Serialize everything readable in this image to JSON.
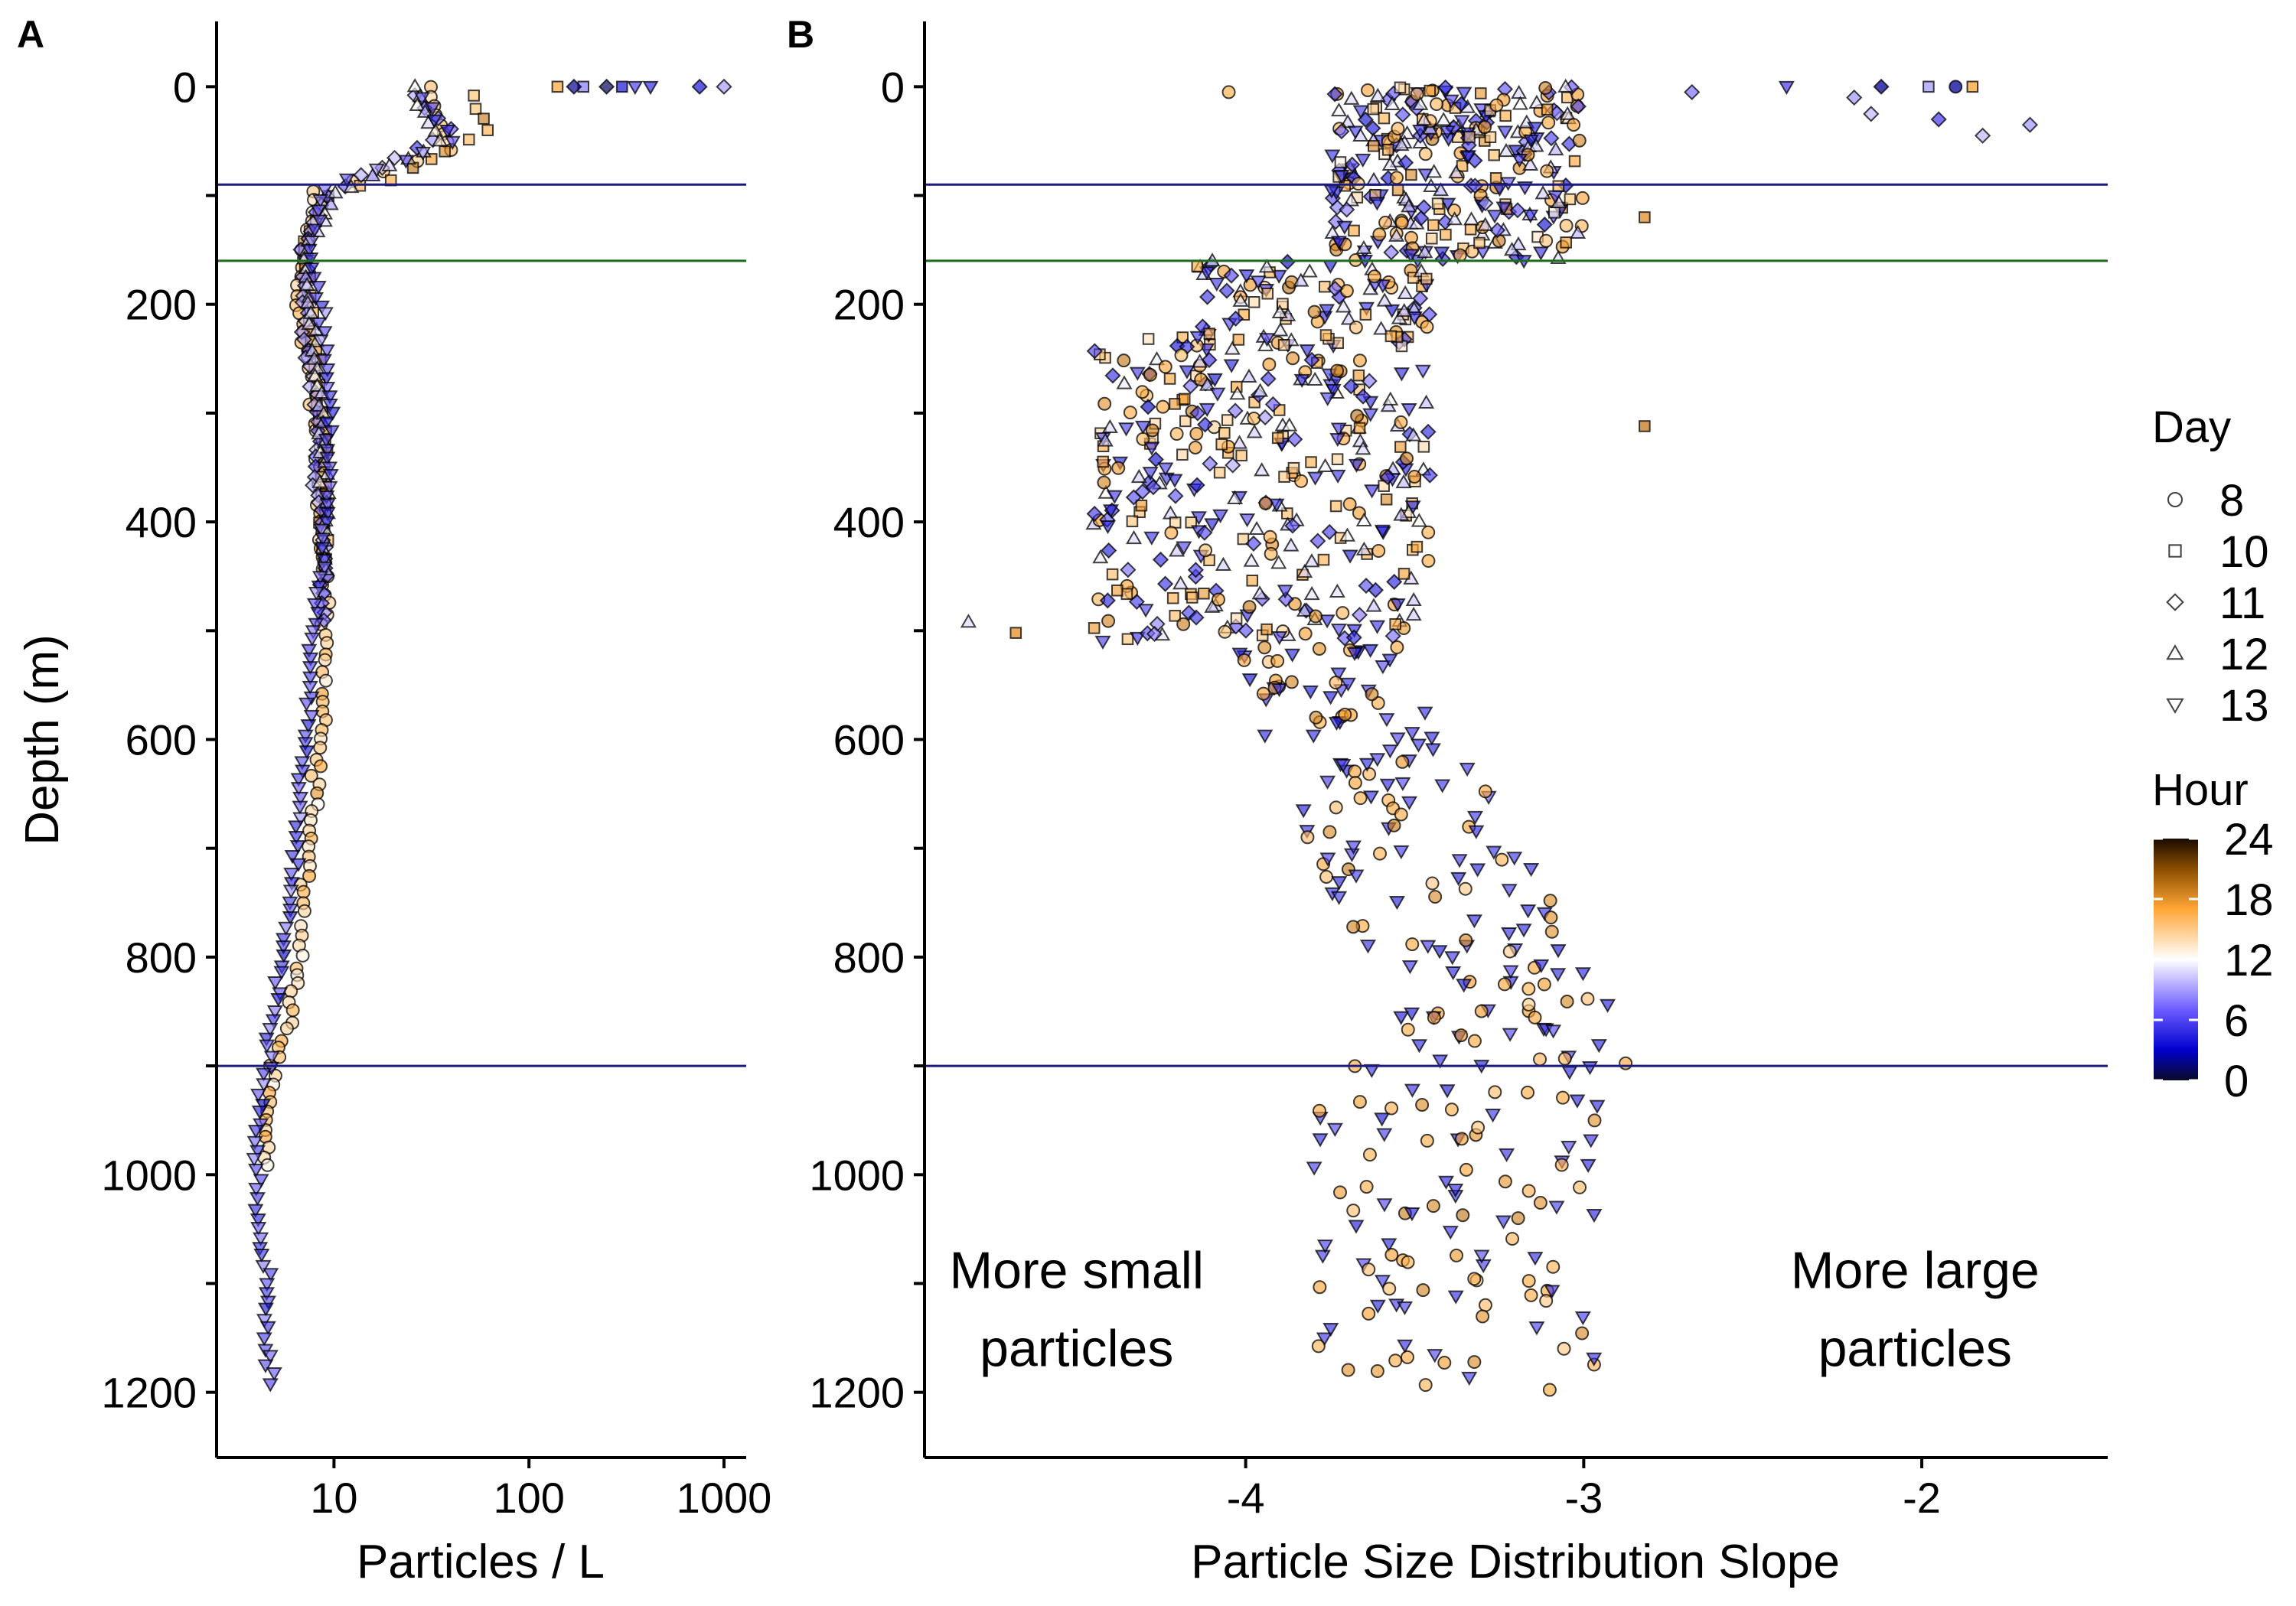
{
  "chart_data": [
    {
      "panel": "A",
      "type": "scatter",
      "xlabel": "Particles / L",
      "ylabel": "Depth (m)",
      "xscale": "log",
      "xticks": [
        "10",
        "100",
        "1000"
      ],
      "yticks": [
        "0",
        "200",
        "400",
        "600",
        "800",
        "1000",
        "1200"
      ],
      "xlim": [
        2.5,
        1300
      ],
      "ylim": [
        1260,
        -60
      ],
      "reference_lines": [
        {
          "depth": 90,
          "color": "#1a1a80"
        },
        {
          "depth": 160,
          "color": "#1f6a1f"
        },
        {
          "depth": 900,
          "color": "#1a1a80"
        }
      ],
      "profiles": [
        {
          "day": 8,
          "hour": 15,
          "x": [
            30,
            40,
            8,
            7,
            6.5,
            7.5,
            8,
            8.5,
            8.5,
            9,
            9,
            8.5,
            8,
            7.5,
            7,
            6.5,
            6,
            5,
            4.5,
            4.5
          ],
          "y": [
            0,
            60,
            95,
            150,
            200,
            250,
            300,
            350,
            400,
            450,
            520,
            600,
            650,
            700,
            760,
            800,
            850,
            900,
            950,
            1000
          ]
        },
        {
          "day": 10,
          "hour": 17,
          "x": [
            50,
            60,
            20,
            9,
            7,
            7.5,
            8,
            8.5,
            9,
            9,
            9
          ],
          "y": [
            10,
            40,
            85,
            100,
            150,
            200,
            250,
            300,
            350,
            400,
            450
          ]
        },
        {
          "day": 11,
          "hour": 8,
          "x": [
            25,
            40,
            9,
            7,
            7,
            7.5,
            8,
            8,
            8.5,
            9,
            8.5
          ],
          "y": [
            10,
            40,
            100,
            150,
            200,
            250,
            300,
            350,
            400,
            450,
            500
          ]
        },
        {
          "day": 12,
          "hour": 11,
          "x": [
            25,
            35,
            10,
            7,
            7.5,
            8,
            8.5,
            9,
            9
          ],
          "y": [
            0,
            50,
            100,
            150,
            200,
            250,
            300,
            400,
            450
          ]
        },
        {
          "day": 13,
          "hour": 6,
          "x": [
            28,
            40,
            9,
            7.5,
            8.5,
            9,
            9.5,
            9.5,
            9,
            8.5,
            8,
            7.5,
            7,
            6.5,
            6,
            5.5,
            5,
            4.5,
            4,
            4,
            4.5,
            4.5,
            5
          ],
          "y": [
            10,
            50,
            95,
            150,
            200,
            250,
            300,
            350,
            400,
            450,
            500,
            560,
            620,
            680,
            740,
            790,
            840,
            900,
            960,
            1040,
            1100,
            1150,
            1200
          ]
        }
      ],
      "surface_points": [
        {
          "day": 10,
          "hour": 17,
          "x": 140,
          "y": 0
        },
        {
          "day": 10,
          "hour": 8,
          "x": 190,
          "y": 0
        },
        {
          "day": 11,
          "hour": 2,
          "x": 170,
          "y": 0
        },
        {
          "day": 11,
          "hour": 1,
          "x": 250,
          "y": 0
        },
        {
          "day": 10,
          "hour": 4,
          "x": 300,
          "y": 0
        },
        {
          "day": 13,
          "hour": 6,
          "x": 350,
          "y": 0
        },
        {
          "day": 13,
          "hour": 5,
          "x": 420,
          "y": 0
        },
        {
          "day": 11,
          "hour": 4,
          "x": 750,
          "y": 0
        },
        {
          "day": 11,
          "hour": 9,
          "x": 1000,
          "y": 0
        }
      ]
    },
    {
      "panel": "B",
      "type": "scatter",
      "xlabel": "Particle Size Distribution Slope",
      "ylabel": "",
      "xticks": [
        "-4",
        "-3",
        "-2"
      ],
      "yticks": [
        "0",
        "200",
        "400",
        "600",
        "800",
        "1000",
        "1200"
      ],
      "xlim": [
        -4.95,
        -1.45
      ],
      "ylim": [
        1260,
        -60
      ],
      "reference_lines": [
        {
          "depth": 90,
          "color": "#1a1a80"
        },
        {
          "depth": 160,
          "color": "#1f6a1f"
        },
        {
          "depth": 900,
          "color": "#1a1a80"
        }
      ],
      "annotations": [
        {
          "lines": [
            "More small",
            "particles"
          ],
          "x": -4.5,
          "y": 1110
        },
        {
          "lines": [
            "More large",
            "particles"
          ],
          "x": -2.02,
          "y": 1110
        }
      ],
      "clusters": [
        {
          "depth_range": [
            0,
            160
          ],
          "slope_range": [
            -3.75,
            -3.0
          ],
          "days": [
            8,
            10,
            11,
            12,
            13
          ],
          "count": 300
        },
        {
          "depth_range": [
            160,
            510
          ],
          "slope_range": [
            -4.45,
            -3.5
          ],
          "days": [
            8,
            10,
            11,
            12,
            13
          ],
          "count": 460
        },
        {
          "depth_range": [
            510,
            900
          ],
          "slope_range": [
            -4.1,
            -2.8
          ],
          "days": [
            8,
            13
          ],
          "count": 170
        },
        {
          "depth_range": [
            900,
            1200
          ],
          "slope_range": [
            -3.8,
            -2.9
          ],
          "days": [
            8,
            13
          ],
          "count": 110
        }
      ],
      "outliers": [
        {
          "day": 11,
          "hour": 8,
          "x": -2.68,
          "y": 5
        },
        {
          "day": 13,
          "hour": 6,
          "x": -2.4,
          "y": 0
        },
        {
          "day": 11,
          "hour": 9,
          "x": -2.2,
          "y": 10
        },
        {
          "day": 11,
          "hour": 10,
          "x": -2.15,
          "y": 25
        },
        {
          "day": 11,
          "hour": 2,
          "x": -2.12,
          "y": 0
        },
        {
          "day": 10,
          "hour": 9,
          "x": -1.98,
          "y": 0
        },
        {
          "day": 8,
          "hour": 2,
          "x": -1.9,
          "y": 0
        },
        {
          "day": 10,
          "hour": 17,
          "x": -1.85,
          "y": 0
        },
        {
          "day": 11,
          "hour": 10,
          "x": -1.82,
          "y": 45
        },
        {
          "day": 11,
          "hour": 9,
          "x": -1.68,
          "y": 35
        },
        {
          "day": 11,
          "hour": 6,
          "x": -1.95,
          "y": 30
        },
        {
          "day": 10,
          "hour": 18,
          "x": -2.82,
          "y": 120
        },
        {
          "day": 10,
          "hour": 19,
          "x": -2.82,
          "y": 312
        },
        {
          "day": 8,
          "hour": 16,
          "x": -4.05,
          "y": 5
        },
        {
          "day": 12,
          "hour": 11,
          "x": -4.82,
          "y": 492
        },
        {
          "day": 10,
          "hour": 18,
          "x": -4.68,
          "y": 502
        }
      ]
    }
  ],
  "legend": {
    "day_title": "Day",
    "days": [
      {
        "label": "8",
        "shape": "circle"
      },
      {
        "label": "10",
        "shape": "square"
      },
      {
        "label": "11",
        "shape": "diamond"
      },
      {
        "label": "12",
        "shape": "triangle-up"
      },
      {
        "label": "13",
        "shape": "triangle-down"
      }
    ],
    "hour_title": "Hour",
    "hour_ticks": [
      "24",
      "18",
      "12",
      "6",
      "0"
    ],
    "hour_range": [
      0,
      24
    ],
    "colormap": [
      {
        "hour": 0,
        "color": "#0a0a28"
      },
      {
        "hour": 3,
        "color": "#0000cc"
      },
      {
        "hour": 7,
        "color": "#6a5aff"
      },
      {
        "hour": 12,
        "color": "#ffffff"
      },
      {
        "hour": 17,
        "color": "#ffa535"
      },
      {
        "hour": 21,
        "color": "#8a4e00"
      },
      {
        "hour": 24,
        "color": "#1a0a00"
      }
    ]
  }
}
